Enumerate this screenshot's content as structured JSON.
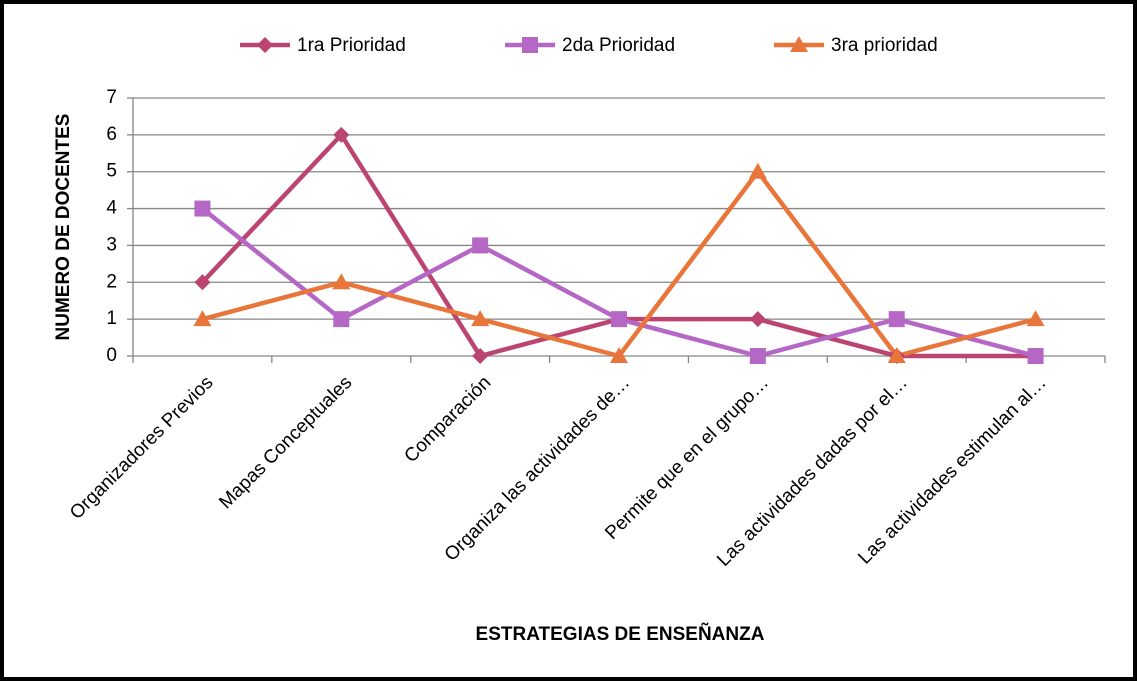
{
  "chart_data": {
    "type": "line",
    "x_label": "ESTRATEGIAS DE ENSEÑANZA",
    "y_label": "NUMERO DE DOCENTES",
    "categories": [
      "Organizadores Previos",
      "Mapas Conceptuales",
      "Comparación",
      "Organiza las actividades de…",
      "Permite que en el grupo…",
      "Las actividades dadas por el…",
      "Las actividades estimulan al…"
    ],
    "series": [
      {
        "name": "1ra Prioridad",
        "color": "#bc4470",
        "marker": "diamond",
        "values": [
          2,
          6,
          0,
          1,
          1,
          0,
          0
        ]
      },
      {
        "name": "2da Prioridad",
        "color": "#b567c6",
        "marker": "square",
        "values": [
          4,
          1,
          3,
          1,
          0,
          1,
          0
        ]
      },
      {
        "name": "3ra prioridad",
        "color": "#e8763a",
        "marker": "triangle",
        "values": [
          1,
          2,
          1,
          0,
          5,
          0,
          1
        ]
      }
    ],
    "ylim": [
      0,
      7
    ],
    "yticks": [
      0,
      1,
      2,
      3,
      4,
      5,
      6,
      7
    ],
    "grid": true,
    "legend": "top"
  }
}
